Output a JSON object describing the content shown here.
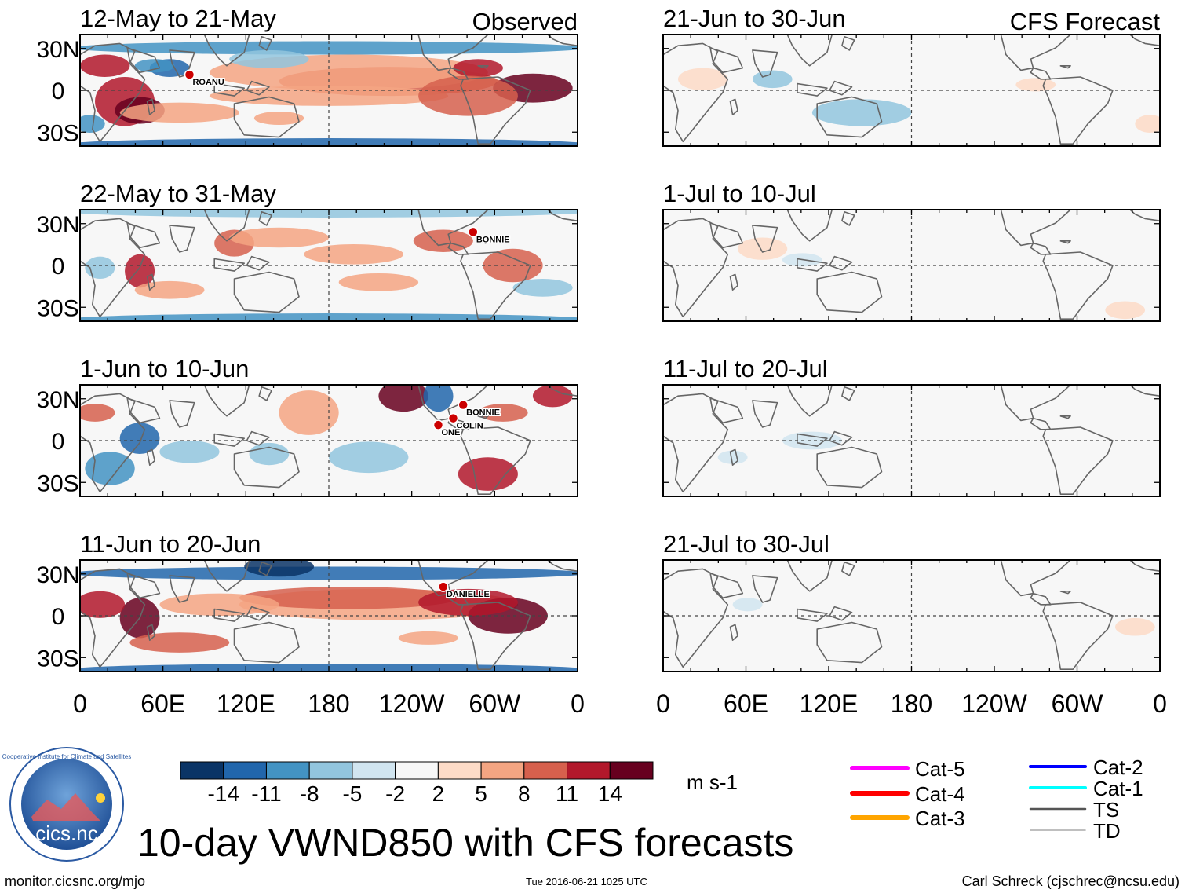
{
  "chart_data": {
    "type": "heatmap",
    "title": "10-day VWND850 with CFS forecasts",
    "variable": "VWND850",
    "units": "m s-1",
    "observed_label": "Observed",
    "forecast_label": "CFS Forecast",
    "lat_ticks": [
      "30N",
      "0",
      "30S"
    ],
    "lon_ticks": [
      "0",
      "60E",
      "120E",
      "180",
      "120W",
      "60W",
      "0"
    ],
    "observed_panels": [
      {
        "period": "12-May to 21-May",
        "storms": [
          "ROANU"
        ]
      },
      {
        "period": "22-May to 31-May",
        "storms": [
          "BONNIE"
        ]
      },
      {
        "period": "1-Jun to 10-Jun",
        "storms": [
          "BONNIE",
          "COLIN",
          "ONE"
        ]
      },
      {
        "period": "11-Jun to 20-Jun",
        "storms": [
          "DANIELLE"
        ]
      }
    ],
    "forecast_panels": [
      {
        "period": "21-Jun to 30-Jun"
      },
      {
        "period": "1-Jul to 10-Jul"
      },
      {
        "period": "11-Jul to 20-Jul"
      },
      {
        "period": "21-Jul to 30-Jul"
      }
    ],
    "colorbar": {
      "levels": [
        "-14",
        "-11",
        "-8",
        "-5",
        "-2",
        "2",
        "5",
        "8",
        "11",
        "14"
      ],
      "colors": [
        "#0a3466",
        "#2166ac",
        "#4393c3",
        "#92c5de",
        "#d1e5f0",
        "#f7f7f7",
        "#fddbc7",
        "#f4a582",
        "#d6604d",
        "#b2182b",
        "#67001f"
      ]
    },
    "legend": [
      {
        "label": "Cat-5",
        "color": "#ff00ff"
      },
      {
        "label": "Cat-4",
        "color": "#ff0000"
      },
      {
        "label": "Cat-3",
        "color": "#ffa500"
      },
      {
        "label": "Cat-2",
        "color": "#0000ff"
      },
      {
        "label": "Cat-1",
        "color": "#00ffff"
      },
      {
        "label": "TS",
        "color": "#555555"
      },
      {
        "label": "TD",
        "color": "#aaaaaa"
      }
    ]
  },
  "footer": {
    "website": "monitor.cicsnc.org/mjo",
    "timestamp": "Tue 2016-06-21 1025 UTC",
    "author": "Carl Schreck (cjschrec@ncsu.edu)",
    "logo_text": "cics.nc",
    "logo_ring": "Cooperative Institute for Climate and Satellites"
  }
}
